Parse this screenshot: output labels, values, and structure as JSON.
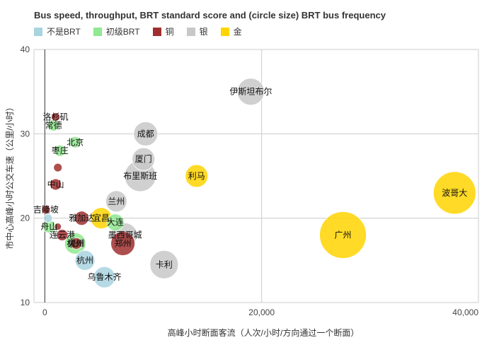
{
  "chart_data": {
    "type": "scatter",
    "title": "Bus speed, throughput, BRT standard score and (circle size) BRT bus frequency",
    "xlabel": "高峰小时断面客流（人次/小时/方向通过一个断面）",
    "ylabel": "市中心高峰小时公交车速（公里/小时）",
    "xlim": [
      -1000,
      40000
    ],
    "ylim": [
      10,
      40
    ],
    "x_ticks": [
      "0",
      "20,000",
      "40,000"
    ],
    "x_tick_values": [
      0,
      20000,
      40000
    ],
    "y_ticks": [
      "10",
      "20",
      "30",
      "40"
    ],
    "y_tick_values": [
      10,
      20,
      30,
      40
    ],
    "grid": true,
    "legend_position": "top",
    "categories": [
      {
        "name": "不是BRT",
        "color": "#a8d4e0"
      },
      {
        "name": "初级BRT",
        "color": "#90e890"
      },
      {
        "name": "铜",
        "color": "#a03030"
      },
      {
        "name": "银",
        "color": "#c8c8c8"
      },
      {
        "name": "金",
        "color": "#ffd400"
      }
    ],
    "points": [
      {
        "label": "波哥大",
        "x": 37800,
        "y": 23,
        "size": 30,
        "cat": 4
      },
      {
        "label": "广州",
        "x": 27500,
        "y": 18,
        "size": 33,
        "cat": 4
      },
      {
        "label": "利马",
        "x": 14000,
        "y": 25,
        "size": 16,
        "cat": 4
      },
      {
        "label": "宜昌",
        "x": 5200,
        "y": 20,
        "size": 15,
        "cat": 4
      },
      {
        "label": "伊斯坦布尔",
        "x": 19000,
        "y": 35,
        "size": 19,
        "cat": 3
      },
      {
        "label": "成都",
        "x": 9300,
        "y": 30,
        "size": 17,
        "cat": 3
      },
      {
        "label": "厦门",
        "x": 9100,
        "y": 27,
        "size": 16,
        "cat": 3
      },
      {
        "label": "布里斯班",
        "x": 8800,
        "y": 25,
        "size": 22,
        "cat": 3
      },
      {
        "label": "兰州",
        "x": 6600,
        "y": 22,
        "size": 15,
        "cat": 3
      },
      {
        "label": "墨西哥城",
        "x": 7400,
        "y": 18,
        "size": 17,
        "cat": 3
      },
      {
        "label": "卡利",
        "x": 11000,
        "y": 14.5,
        "size": 20,
        "cat": 3
      },
      {
        "label": "雅加达",
        "x": 3400,
        "y": 20,
        "size": 10,
        "cat": 2
      },
      {
        "label": "郑州",
        "x": 7200,
        "y": 17,
        "size": 17,
        "cat": 2
      },
      {
        "label": "泉州",
        "x": 2900,
        "y": 17,
        "size": 8,
        "cat": 2
      },
      {
        "label": "洛杉矶",
        "x": 1000,
        "y": 32,
        "size": 6,
        "cat": 2
      },
      {
        "label": "中山",
        "x": 1000,
        "y": 24,
        "size": 8,
        "cat": 2
      },
      {
        "label": "",
        "x": 1200,
        "y": 26,
        "size": 6,
        "cat": 2
      },
      {
        "label": "吉隆坡",
        "x": 100,
        "y": 21,
        "size": 6,
        "cat": 2
      },
      {
        "label": "",
        "x": 1200,
        "y": 19,
        "size": 5,
        "cat": 2
      },
      {
        "label": "连云港",
        "x": 1600,
        "y": 18,
        "size": 8,
        "cat": 2
      },
      {
        "label": "北京",
        "x": 2800,
        "y": 29,
        "size": 8,
        "cat": 1
      },
      {
        "label": "常德",
        "x": 800,
        "y": 31,
        "size": 8,
        "cat": 1
      },
      {
        "label": "枣庄",
        "x": 1400,
        "y": 28,
        "size": 8,
        "cat": 1
      },
      {
        "label": "舟山",
        "x": 400,
        "y": 19,
        "size": 9,
        "cat": 1
      },
      {
        "label": "大连",
        "x": 6500,
        "y": 19.5,
        "size": 12,
        "cat": 1
      },
      {
        "label": "杭州",
        "x": 2800,
        "y": 17,
        "size": 15,
        "cat": 1
      },
      {
        "label": "杭州",
        "x": 3700,
        "y": 15,
        "size": 14,
        "cat": 0
      },
      {
        "label": "乌鲁木齐",
        "x": 5500,
        "y": 13,
        "size": 15,
        "cat": 0
      },
      {
        "label": "",
        "x": 300,
        "y": 20,
        "size": 6,
        "cat": 0
      }
    ]
  }
}
